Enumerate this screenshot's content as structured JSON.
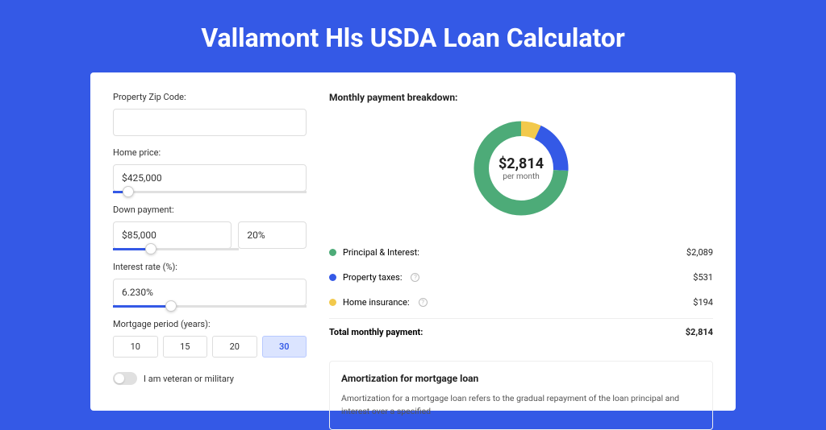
{
  "title": "Vallamont Hls USDA Loan Calculator",
  "colors": {
    "page_bg": "#3459e6",
    "card_bg": "#ffffff",
    "principal": "#4dab78",
    "taxes": "#3459e6",
    "insurance": "#f2c94c"
  },
  "form": {
    "zip": {
      "label": "Property Zip Code:",
      "value": ""
    },
    "home_price": {
      "label": "Home price:",
      "value": "$425,000",
      "slider_pct": 8
    },
    "down_payment": {
      "label": "Down payment:",
      "amount": "$85,000",
      "percent": "20%",
      "slider_pct": 20
    },
    "interest": {
      "label": "Interest rate (%):",
      "value": "6.230%",
      "slider_pct": 30
    },
    "period": {
      "label": "Mortgage period (years):",
      "options": [
        "10",
        "15",
        "20",
        "30"
      ],
      "selected": "30"
    },
    "veteran": {
      "label": "I am veteran or military",
      "on": false
    }
  },
  "breakdown": {
    "title": "Monthly payment breakdown:",
    "center_amount": "$2,814",
    "center_sub": "per month",
    "donut": {
      "principal_pct": 74.2,
      "taxes_pct": 18.9,
      "insurance_pct": 6.9
    },
    "rows": [
      {
        "label": "Principal & Interest:",
        "value": "$2,089",
        "color": "#4dab78",
        "info": false
      },
      {
        "label": "Property taxes:",
        "value": "$531",
        "color": "#3459e6",
        "info": true
      },
      {
        "label": "Home insurance:",
        "value": "$194",
        "color": "#f2c94c",
        "info": true
      }
    ],
    "total_label": "Total monthly payment:",
    "total_value": "$2,814"
  },
  "amortization": {
    "title": "Amortization for mortgage loan",
    "text": "Amortization for a mortgage loan refers to the gradual repayment of the loan principal and interest over a specified"
  }
}
